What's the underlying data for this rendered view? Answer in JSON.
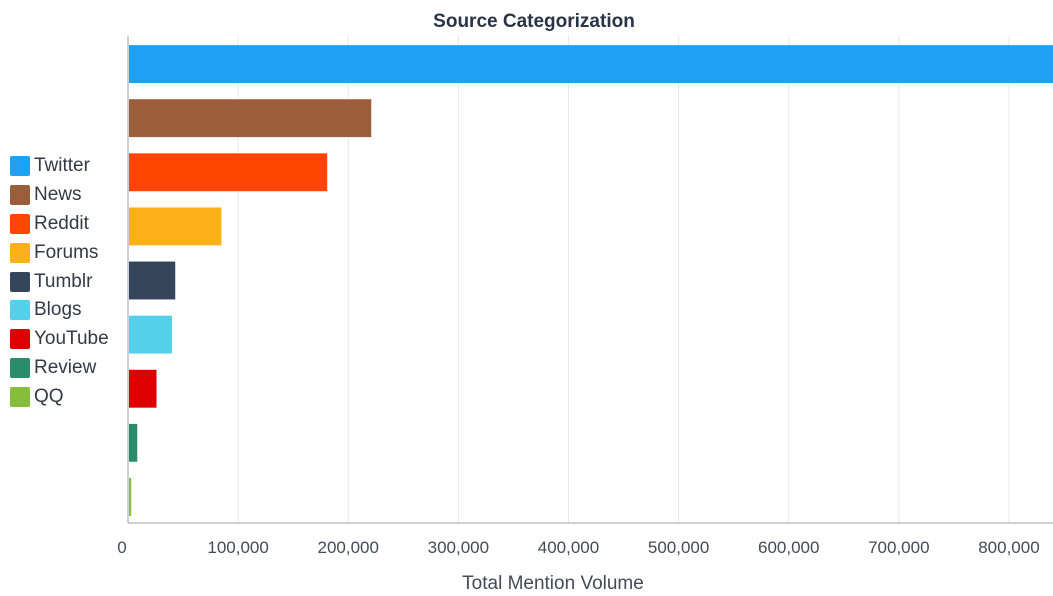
{
  "chart_data": {
    "type": "bar",
    "orientation": "horizontal",
    "title": "Source Categorization",
    "xlabel": "Total Mention Volume",
    "ylabel": "",
    "xlim": [
      0,
      840000
    ],
    "x_ticks": [
      "0",
      "100,000",
      "200,000",
      "300,000",
      "400,000",
      "500,000",
      "600,000",
      "700,000",
      "800,000"
    ],
    "x_tick_values": [
      0,
      100000,
      200000,
      300000,
      400000,
      500000,
      600000,
      700000,
      800000
    ],
    "grid": "vertical",
    "legend_position": "left",
    "categories": [
      "Twitter",
      "News",
      "Reddit",
      "Forums",
      "Tumblr",
      "Blogs",
      "YouTube",
      "Review",
      "QQ"
    ],
    "values": [
      845000,
      220000,
      180000,
      84000,
      42000,
      39000,
      25000,
      7500,
      2000
    ],
    "colors": [
      "#1ea1f2",
      "#9b5e3a",
      "#ff4500",
      "#fdb119",
      "#35465c",
      "#56cfe8",
      "#dd0000",
      "#2a8c6a",
      "#86be3b"
    ]
  }
}
